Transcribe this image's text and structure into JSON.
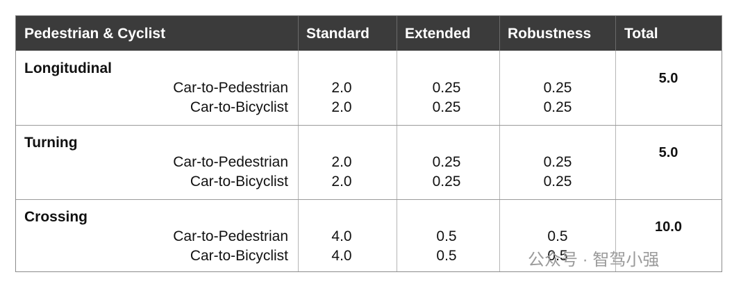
{
  "table": {
    "header": [
      "Pedestrian & Cyclist",
      "Standard",
      "Extended",
      "Robustness",
      "Total"
    ],
    "groups": [
      {
        "name": "Longitudinal",
        "total": "5.0",
        "rows": [
          {
            "label": "Car-to-Pedestrian",
            "standard": "2.0",
            "extended": "0.25",
            "robustness": "0.25"
          },
          {
            "label": "Car-to-Bicyclist",
            "standard": "2.0",
            "extended": "0.25",
            "robustness": "0.25"
          }
        ]
      },
      {
        "name": "Turning",
        "total": "5.0",
        "rows": [
          {
            "label": "Car-to-Pedestrian",
            "standard": "2.0",
            "extended": "0.25",
            "robustness": "0.25"
          },
          {
            "label": "Car-to-Bicyclist",
            "standard": "2.0",
            "extended": "0.25",
            "robustness": "0.25"
          }
        ]
      },
      {
        "name": "Crossing",
        "total": "10.0",
        "rows": [
          {
            "label": "Car-to-Pedestrian",
            "standard": "4.0",
            "extended": "0.5",
            "robustness": "0.5"
          },
          {
            "label": "Car-to-Bicyclist",
            "standard": "4.0",
            "extended": "0.5",
            "robustness": "0.5"
          }
        ]
      }
    ]
  },
  "watermark": "公众号 · 智驾小强"
}
